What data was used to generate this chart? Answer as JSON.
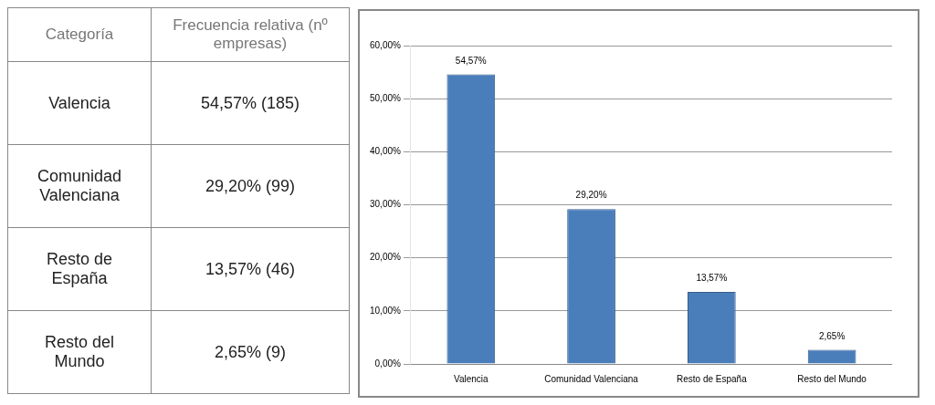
{
  "chart_data": [
    {
      "type": "other",
      "annotations": [
        "Categoría",
        "Frecuencia relativa (nº empresas)",
        "Valencia",
        "54,57% (185)",
        "Comunidad Valenciana",
        "29,20% (99)",
        "Resto de España",
        "13,57% (46)",
        "Resto del Mundo",
        "2,65% (9)"
      ]
    },
    {
      "type": "bar",
      "categories": [
        "Valencia",
        "Comunidad Valenciana",
        "Resto de España",
        "Resto del Mundo"
      ],
      "values": [
        54.57,
        29.2,
        13.57,
        2.65
      ],
      "value_labels": [
        "54,57%",
        "29,20%",
        "13,57%",
        "2,65%"
      ],
      "color": "#4a7ebb",
      "ylim": [
        0,
        60
      ],
      "yticks": [
        {
          "value": 0,
          "label": "0,00%"
        },
        {
          "value": 10,
          "label": "10,00%"
        },
        {
          "value": 20,
          "label": "20,00%"
        },
        {
          "value": 30,
          "label": "30,00%"
        },
        {
          "value": 40,
          "label": "40,00%"
        },
        {
          "value": 50,
          "label": "50,00%"
        },
        {
          "value": 60,
          "label": "60,00%"
        }
      ],
      "grid": "y"
    }
  ]
}
